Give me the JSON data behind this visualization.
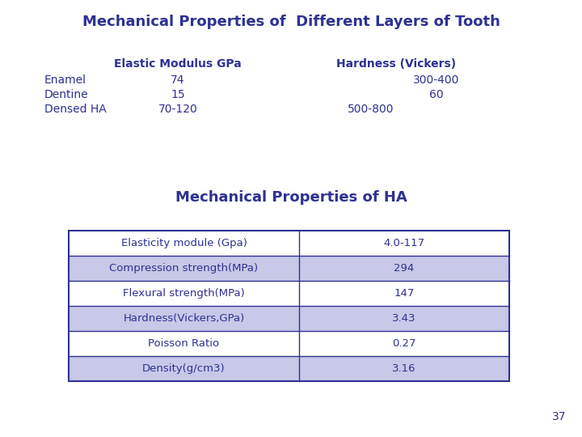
{
  "title1": "Mechanical Properties of  Different Layers of Tooth",
  "title1_color": "#2E3192",
  "title1_fontsize": 13,
  "top_table_col1_header": "Elastic Modulus GPa",
  "top_table_col2_header": "Hardness (Vickers)",
  "top_table_rows": [
    [
      "Enamel",
      "74",
      "300-400"
    ],
    [
      "Dentine",
      "15",
      "60"
    ],
    [
      "Densed HA",
      "70-120",
      "500-800"
    ]
  ],
  "title2": "Mechanical Properties of HA",
  "title2_color": "#2E3192",
  "title2_fontsize": 13,
  "bottom_table_rows": [
    [
      "Elasticity module (Gpa)",
      "4.0-117"
    ],
    [
      "Compression strength(MPa)",
      "294"
    ],
    [
      "Flexural strength(MPa)",
      "147"
    ],
    [
      "Hardness(Vickers,GPa)",
      "3.43"
    ],
    [
      "Poisson Ratio",
      "0.27"
    ],
    [
      "Density(g/cm3)",
      "3.16"
    ]
  ],
  "row_colors_bottom": [
    "#FFFFFF",
    "#C8C8E8",
    "#FFFFFF",
    "#C8C8E8",
    "#FFFFFF",
    "#C8C8E8"
  ],
  "table_border_color": "#2E3192",
  "text_color": "#2E3192",
  "bg_color": "#FFFFFF",
  "page_number": "37",
  "font_family": "DejaVu Sans"
}
